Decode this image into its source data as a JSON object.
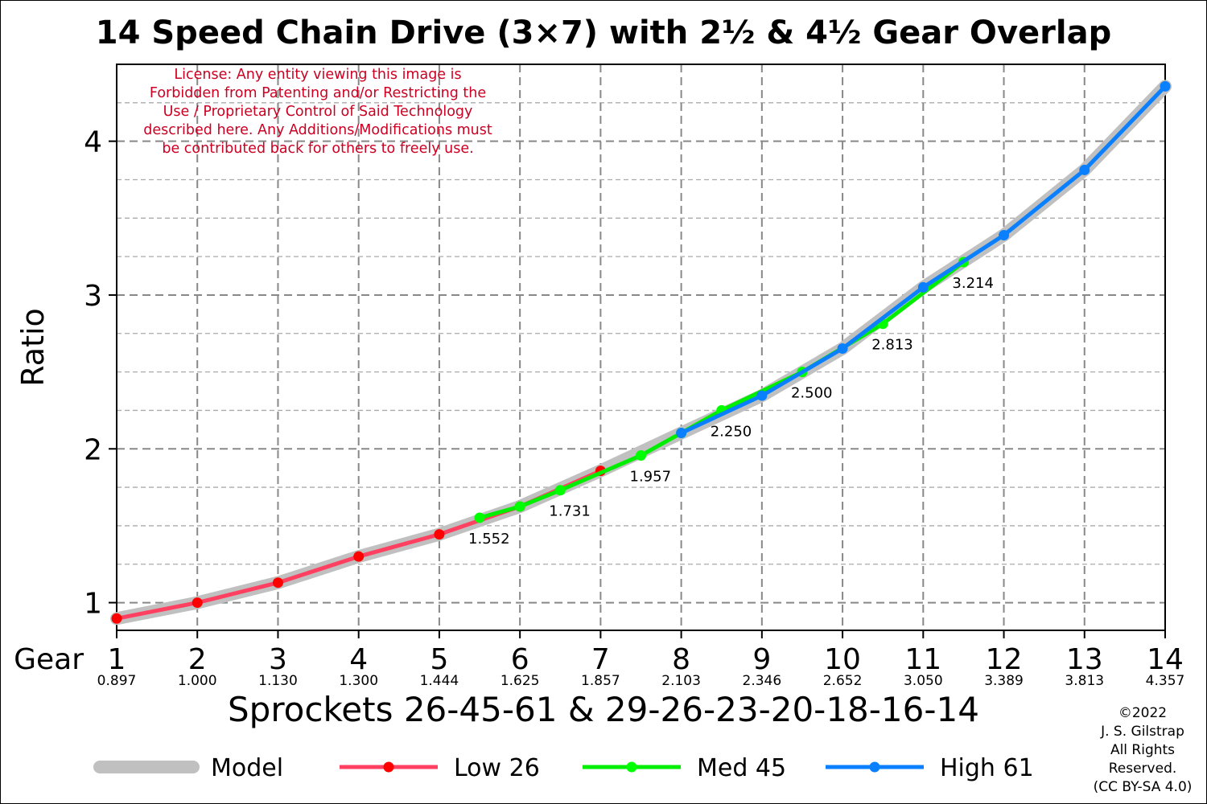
{
  "chart_data": {
    "type": "line",
    "title": "14 Speed Chain Drive (3×7) with 2½ & 4½ Gear Overlap",
    "ylabel": "Ratio",
    "xlabel": "Sprockets  26-45-61  &  29-26-23-20-18-16-14",
    "gear_label": "Gear",
    "xlim": [
      1,
      14
    ],
    "ylim": [
      0.82,
      4.5
    ],
    "x_ticks": [
      1,
      2,
      3,
      4,
      5,
      6,
      7,
      8,
      9,
      10,
      11,
      12,
      13,
      14
    ],
    "x_tick_ratios": [
      "0.897",
      "1.000",
      "1.130",
      "1.300",
      "1.444",
      "1.625",
      "1.857",
      "2.103",
      "2.346",
      "2.652",
      "3.050",
      "3.389",
      "3.813",
      "4.357"
    ],
    "y_ticks": [
      1,
      2,
      3,
      4
    ],
    "grid": true,
    "legend_position": "bottom",
    "license": [
      "License: Any entity viewing this image is",
      "Forbidden from Patenting and/or Restricting the",
      "Use / Proprietary Control of Said Technology",
      "described here.  Any Additions/Modifications must",
      "be contributed back for others to freely use."
    ],
    "copyright": [
      "©2022",
      "J. S. Gilstrap",
      "All Rights",
      "Reserved.",
      "(CC BY-SA 4.0)"
    ],
    "annotations": [
      {
        "x": 5.5,
        "y": 1.552,
        "text": "1.552"
      },
      {
        "x": 6.5,
        "y": 1.731,
        "text": "1.731"
      },
      {
        "x": 7.5,
        "y": 1.957,
        "text": "1.957"
      },
      {
        "x": 8.5,
        "y": 2.25,
        "text": "2.250"
      },
      {
        "x": 9.5,
        "y": 2.5,
        "text": "2.500"
      },
      {
        "x": 10.5,
        "y": 2.813,
        "text": "2.813"
      },
      {
        "x": 11.5,
        "y": 3.214,
        "text": "3.214"
      }
    ],
    "series": [
      {
        "name": "Model",
        "color": "#c0c0c0",
        "markers": false,
        "x": [
          1,
          2,
          3,
          4,
          5,
          6,
          7,
          8,
          9,
          10,
          11,
          12,
          13,
          14
        ],
        "y": [
          0.897,
          1.0,
          1.13,
          1.3,
          1.444,
          1.625,
          1.857,
          2.103,
          2.346,
          2.652,
          3.05,
          3.389,
          3.813,
          4.357
        ]
      },
      {
        "name": "Low 26",
        "color": "#ff4060",
        "marker_color": "#ff0000",
        "markers": true,
        "x": [
          1,
          2,
          3,
          4,
          5,
          6,
          7
        ],
        "y": [
          0.897,
          1.0,
          1.13,
          1.3,
          1.444,
          1.625,
          1.857
        ]
      },
      {
        "name": "Med 45",
        "color": "#00ee00",
        "marker_color": "#00ff00",
        "markers": true,
        "x": [
          5.5,
          6,
          6.5,
          7.5,
          8,
          8.5,
          9.5,
          10.5,
          11.5
        ],
        "y": [
          1.552,
          1.625,
          1.731,
          1.957,
          2.103,
          2.25,
          2.5,
          2.813,
          3.214
        ]
      },
      {
        "name": "High 61",
        "color": "#0a80ff",
        "marker_color": "#0a80ff",
        "markers": true,
        "x": [
          8,
          9,
          10,
          11,
          12,
          13,
          14
        ],
        "y": [
          2.103,
          2.346,
          2.652,
          3.05,
          3.389,
          3.813,
          4.357
        ]
      }
    ]
  }
}
